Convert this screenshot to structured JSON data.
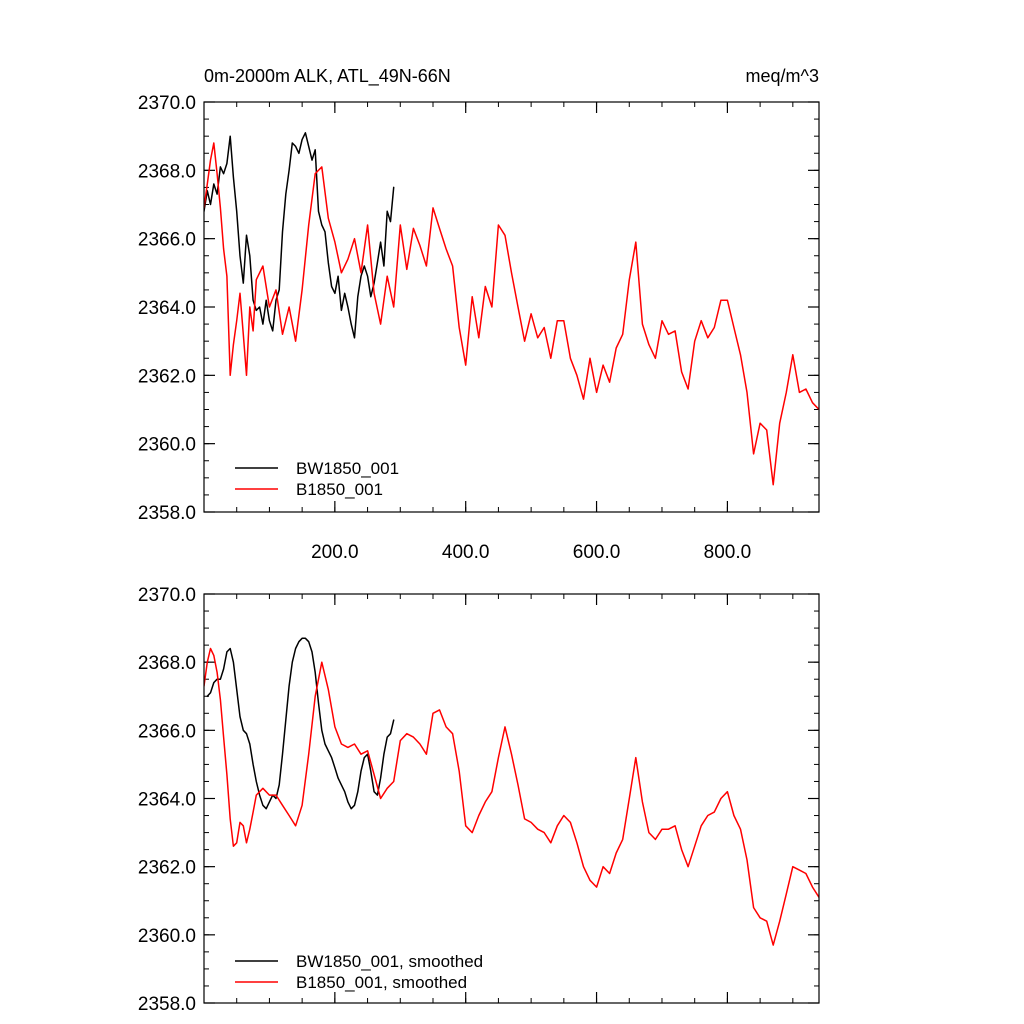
{
  "chart_data": [
    {
      "type": "line",
      "title": "0m-2000m ALK, ATL_49N-66N",
      "units": "meq/m^3",
      "xlim": [
        0,
        940
      ],
      "ylim": [
        2358,
        2370
      ],
      "xticks": [
        200,
        400,
        600,
        800
      ],
      "xtick_labels": [
        "200.0",
        "400.0",
        "600.0",
        "800.0"
      ],
      "yticks": [
        2358,
        2360,
        2362,
        2364,
        2366,
        2368,
        2370
      ],
      "ytick_labels": [
        "2358.0",
        "2360.0",
        "2362.0",
        "2364.0",
        "2366.0",
        "2368.0",
        "2370.0"
      ],
      "legend_position": "bottom-left",
      "series": [
        {
          "name": "BW1850_001",
          "color": "#000000",
          "x": [
            0,
            5,
            10,
            15,
            20,
            25,
            30,
            35,
            40,
            45,
            50,
            55,
            60,
            65,
            70,
            75,
            80,
            85,
            90,
            95,
            100,
            105,
            110,
            115,
            120,
            125,
            130,
            135,
            140,
            145,
            150,
            155,
            160,
            165,
            170,
            175,
            180,
            185,
            190,
            195,
            200,
            205,
            210,
            215,
            220,
            225,
            230,
            235,
            240,
            245,
            250,
            255,
            260,
            265,
            270,
            275,
            280,
            285,
            290
          ],
          "values": [
            2366.8,
            2367.4,
            2367.0,
            2367.6,
            2367.3,
            2368.1,
            2367.9,
            2368.2,
            2369.0,
            2367.8,
            2366.8,
            2365.5,
            2364.7,
            2366.1,
            2365.5,
            2364.2,
            2363.9,
            2364.0,
            2363.5,
            2364.2,
            2363.6,
            2363.3,
            2364.2,
            2364.5,
            2366.2,
            2367.3,
            2368.0,
            2368.8,
            2368.7,
            2368.5,
            2368.9,
            2369.1,
            2368.7,
            2368.3,
            2368.6,
            2366.8,
            2366.4,
            2366.2,
            2365.3,
            2364.6,
            2364.4,
            2364.9,
            2363.9,
            2364.4,
            2364.0,
            2363.5,
            2363.1,
            2364.3,
            2364.9,
            2365.2,
            2364.9,
            2364.3,
            2364.7,
            2365.3,
            2365.9,
            2365.2,
            2366.8,
            2366.5,
            2367.5
          ]
        },
        {
          "name": "B1850_001",
          "color": "#ff0000",
          "x": [
            0,
            5,
            10,
            15,
            20,
            25,
            30,
            35,
            40,
            45,
            50,
            55,
            60,
            65,
            70,
            75,
            80,
            90,
            100,
            110,
            120,
            130,
            140,
            150,
            160,
            170,
            180,
            190,
            200,
            210,
            220,
            230,
            240,
            250,
            260,
            270,
            280,
            290,
            300,
            310,
            320,
            330,
            340,
            350,
            360,
            370,
            380,
            390,
            400,
            410,
            420,
            430,
            440,
            450,
            460,
            470,
            480,
            490,
            500,
            510,
            520,
            530,
            540,
            550,
            560,
            570,
            580,
            590,
            600,
            610,
            620,
            630,
            640,
            650,
            660,
            670,
            680,
            690,
            700,
            710,
            720,
            730,
            740,
            750,
            760,
            770,
            780,
            790,
            800,
            810,
            820,
            830,
            840,
            850,
            860,
            870,
            880,
            890,
            900,
            910,
            920,
            930,
            940
          ],
          "values": [
            2366.9,
            2367.6,
            2368.3,
            2368.8,
            2367.9,
            2366.9,
            2365.7,
            2364.9,
            2362.0,
            2362.9,
            2363.6,
            2364.4,
            2363.2,
            2362.0,
            2364.0,
            2363.3,
            2364.8,
            2365.2,
            2364.0,
            2364.5,
            2363.2,
            2364.0,
            2363.0,
            2364.5,
            2366.4,
            2367.9,
            2368.1,
            2366.6,
            2365.9,
            2365.0,
            2365.4,
            2366.0,
            2365.0,
            2366.4,
            2364.4,
            2363.5,
            2364.9,
            2364.0,
            2366.4,
            2365.1,
            2366.3,
            2365.8,
            2365.2,
            2366.9,
            2366.3,
            2365.7,
            2365.2,
            2363.4,
            2362.3,
            2364.3,
            2363.1,
            2364.6,
            2364.0,
            2366.4,
            2366.1,
            2365.0,
            2364.0,
            2363.0,
            2363.8,
            2363.1,
            2363.4,
            2362.5,
            2363.6,
            2363.6,
            2362.5,
            2362.0,
            2361.3,
            2362.5,
            2361.5,
            2362.3,
            2361.8,
            2362.8,
            2363.2,
            2364.8,
            2365.9,
            2363.5,
            2362.9,
            2362.5,
            2363.6,
            2363.2,
            2363.3,
            2362.1,
            2361.6,
            2363.0,
            2363.6,
            2363.1,
            2363.4,
            2364.2,
            2364.2,
            2363.4,
            2362.6,
            2361.5,
            2359.7,
            2360.6,
            2360.4,
            2358.8,
            2360.6,
            2361.5,
            2362.6,
            2361.5,
            2361.6,
            2361.2,
            2361.0
          ]
        }
      ]
    },
    {
      "type": "line",
      "xlim": [
        0,
        940
      ],
      "ylim": [
        2358,
        2370
      ],
      "yticks": [
        2358,
        2360,
        2362,
        2364,
        2366,
        2368,
        2370
      ],
      "ytick_labels": [
        "2358.0",
        "2360.0",
        "2362.0",
        "2364.0",
        "2366.0",
        "2368.0",
        "2370.0"
      ],
      "xticks": [
        200,
        400,
        600,
        800
      ],
      "legend_position": "bottom-left",
      "series": [
        {
          "name": "BW1850_001, smoothed",
          "color": "#000000",
          "x": [
            5,
            10,
            15,
            20,
            25,
            30,
            35,
            40,
            45,
            50,
            55,
            60,
            65,
            70,
            75,
            80,
            85,
            90,
            95,
            100,
            105,
            110,
            115,
            120,
            125,
            130,
            135,
            140,
            145,
            150,
            155,
            160,
            165,
            170,
            175,
            180,
            185,
            190,
            195,
            200,
            205,
            210,
            215,
            220,
            225,
            230,
            235,
            240,
            245,
            250,
            255,
            260,
            265,
            270,
            275,
            280,
            285,
            290
          ],
          "values": [
            2367.0,
            2367.1,
            2367.4,
            2367.5,
            2367.5,
            2367.8,
            2368.3,
            2368.4,
            2368.0,
            2367.2,
            2366.4,
            2366.0,
            2365.9,
            2365.6,
            2365.0,
            2364.5,
            2364.1,
            2363.8,
            2363.7,
            2363.9,
            2364.1,
            2364.0,
            2364.4,
            2365.3,
            2366.3,
            2367.3,
            2368.0,
            2368.4,
            2368.6,
            2368.7,
            2368.7,
            2368.6,
            2368.3,
            2367.7,
            2366.8,
            2366.0,
            2365.6,
            2365.4,
            2365.2,
            2364.9,
            2364.6,
            2364.4,
            2364.2,
            2363.9,
            2363.7,
            2363.8,
            2364.2,
            2364.8,
            2365.2,
            2365.3,
            2364.8,
            2364.2,
            2364.1,
            2364.6,
            2365.3,
            2365.8,
            2365.9,
            2366.3
          ]
        },
        {
          "name": "B1850_001, smoothed",
          "color": "#ff0000",
          "x": [
            0,
            5,
            10,
            15,
            20,
            25,
            30,
            35,
            40,
            45,
            50,
            55,
            60,
            65,
            70,
            75,
            80,
            90,
            100,
            110,
            120,
            130,
            140,
            150,
            160,
            170,
            180,
            190,
            200,
            210,
            220,
            230,
            240,
            250,
            260,
            270,
            280,
            290,
            300,
            310,
            320,
            330,
            340,
            350,
            360,
            370,
            380,
            390,
            400,
            410,
            420,
            430,
            440,
            450,
            460,
            470,
            480,
            490,
            500,
            510,
            520,
            530,
            540,
            550,
            560,
            570,
            580,
            590,
            600,
            610,
            620,
            630,
            640,
            650,
            660,
            670,
            680,
            690,
            700,
            710,
            720,
            730,
            740,
            750,
            760,
            770,
            780,
            790,
            800,
            810,
            820,
            830,
            840,
            850,
            860,
            870,
            880,
            890,
            900,
            910,
            920,
            930,
            940
          ],
          "values": [
            2367.3,
            2368.0,
            2368.4,
            2368.2,
            2367.7,
            2366.9,
            2365.8,
            2364.7,
            2363.4,
            2362.6,
            2362.7,
            2363.3,
            2363.2,
            2362.7,
            2363.1,
            2363.6,
            2364.1,
            2364.3,
            2364.1,
            2364.1,
            2363.8,
            2363.5,
            2363.2,
            2363.8,
            2365.3,
            2367.0,
            2368.0,
            2367.2,
            2366.1,
            2365.6,
            2365.5,
            2365.6,
            2365.3,
            2365.4,
            2364.7,
            2364.0,
            2364.3,
            2364.5,
            2365.7,
            2365.9,
            2365.8,
            2365.6,
            2365.3,
            2366.5,
            2366.6,
            2366.1,
            2365.9,
            2364.8,
            2363.2,
            2363.0,
            2363.5,
            2363.9,
            2364.2,
            2365.2,
            2366.1,
            2365.3,
            2364.4,
            2363.4,
            2363.3,
            2363.1,
            2363.0,
            2362.7,
            2363.2,
            2363.5,
            2363.3,
            2362.7,
            2362.0,
            2361.6,
            2361.4,
            2362.0,
            2361.8,
            2362.4,
            2362.8,
            2364.0,
            2365.2,
            2363.9,
            2363.0,
            2362.8,
            2363.1,
            2363.1,
            2363.2,
            2362.5,
            2362.0,
            2362.6,
            2363.2,
            2363.5,
            2363.6,
            2364.0,
            2364.2,
            2363.5,
            2363.1,
            2362.2,
            2360.8,
            2360.5,
            2360.4,
            2359.7,
            2360.4,
            2361.2,
            2362.0,
            2361.9,
            2361.8,
            2361.4,
            2361.1
          ]
        }
      ]
    }
  ]
}
